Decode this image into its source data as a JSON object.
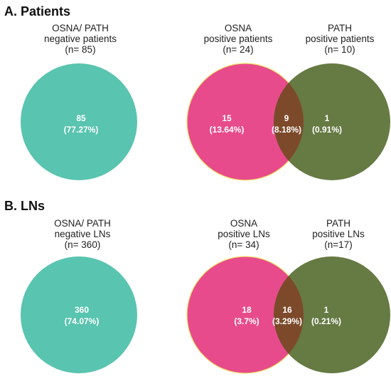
{
  "panel_a": {
    "title": "A. Patients",
    "negative": {
      "label_line1": "OSNA/ PATH",
      "label_line2": "negative patients",
      "label_line3": "(n= 85)",
      "value": "85",
      "percent": "(77.27%)",
      "color": "#59c4af"
    },
    "osna": {
      "label_line1": "OSNA",
      "label_line2": "positive patients",
      "label_line3": "(n= 24)",
      "value": "15",
      "percent": "(13.64%)",
      "color": "#e74b8b"
    },
    "overlap": {
      "value": "9",
      "percent": "(8.18%)",
      "color": "#7c4a2a"
    },
    "path": {
      "label_line1": "PATH",
      "label_line2": "positive patients",
      "label_line3": "(n= 10)",
      "value": "1",
      "percent": "(0.91%)",
      "color": "#667a43"
    }
  },
  "panel_b": {
    "title": "B. LNs",
    "negative": {
      "label_line1": "OSNA/ PATH",
      "label_line2": "negative LNs",
      "label_line3": "(n= 360)",
      "value": "360",
      "percent": "(74.07%)",
      "color": "#59c4af"
    },
    "osna": {
      "label_line1": "OSNA",
      "label_line2": "positive LNs",
      "label_line3": "(n= 34)",
      "value": "18",
      "percent": "(3.7%)",
      "color": "#e74b8b"
    },
    "overlap": {
      "value": "16",
      "percent": "(3.29%)",
      "color": "#7c4a2a"
    },
    "path": {
      "label_line1": "PATH",
      "label_line2": "positive LNs",
      "label_line3": "(n=17)",
      "value": "1",
      "percent": "(0.21%)",
      "color": "#667a43"
    }
  }
}
